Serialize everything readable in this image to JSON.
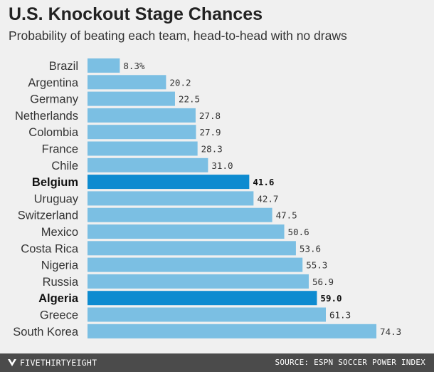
{
  "title": "U.S. Knockout Stage Chances",
  "subtitle": "Probability of beating each team, head-to-head with no draws",
  "footer": {
    "brand": "FIVETHIRTYEIGHT",
    "source": "SOURCE: ESPN SOCCER POWER INDEX"
  },
  "colors": {
    "bar": "#7bbfe3",
    "highlight": "#0d8bd0",
    "background": "#f0f0f0",
    "footer": "#4b4b4b"
  },
  "chart_data": {
    "type": "bar",
    "orientation": "horizontal",
    "categories": [
      "Brazil",
      "Argentina",
      "Germany",
      "Netherlands",
      "Colombia",
      "France",
      "Chile",
      "Belgium",
      "Uruguay",
      "Switzerland",
      "Mexico",
      "Costa Rica",
      "Nigeria",
      "Russia",
      "Algeria",
      "Greece",
      "South Korea"
    ],
    "values": [
      8.3,
      20.2,
      22.5,
      27.8,
      27.9,
      28.3,
      31.0,
      41.6,
      42.7,
      47.5,
      50.6,
      53.6,
      55.3,
      56.9,
      59.0,
      61.3,
      74.3
    ],
    "value_labels": [
      "8.3%",
      "20.2",
      "22.5",
      "27.8",
      "27.9",
      "28.3",
      "31.0",
      "41.6",
      "42.7",
      "47.5",
      "50.6",
      "53.6",
      "55.3",
      "56.9",
      "59.0",
      "61.3",
      "74.3"
    ],
    "highlighted": [
      "Belgium",
      "Algeria"
    ],
    "xlim": [
      0,
      100
    ],
    "grid": false,
    "legend": "none"
  }
}
